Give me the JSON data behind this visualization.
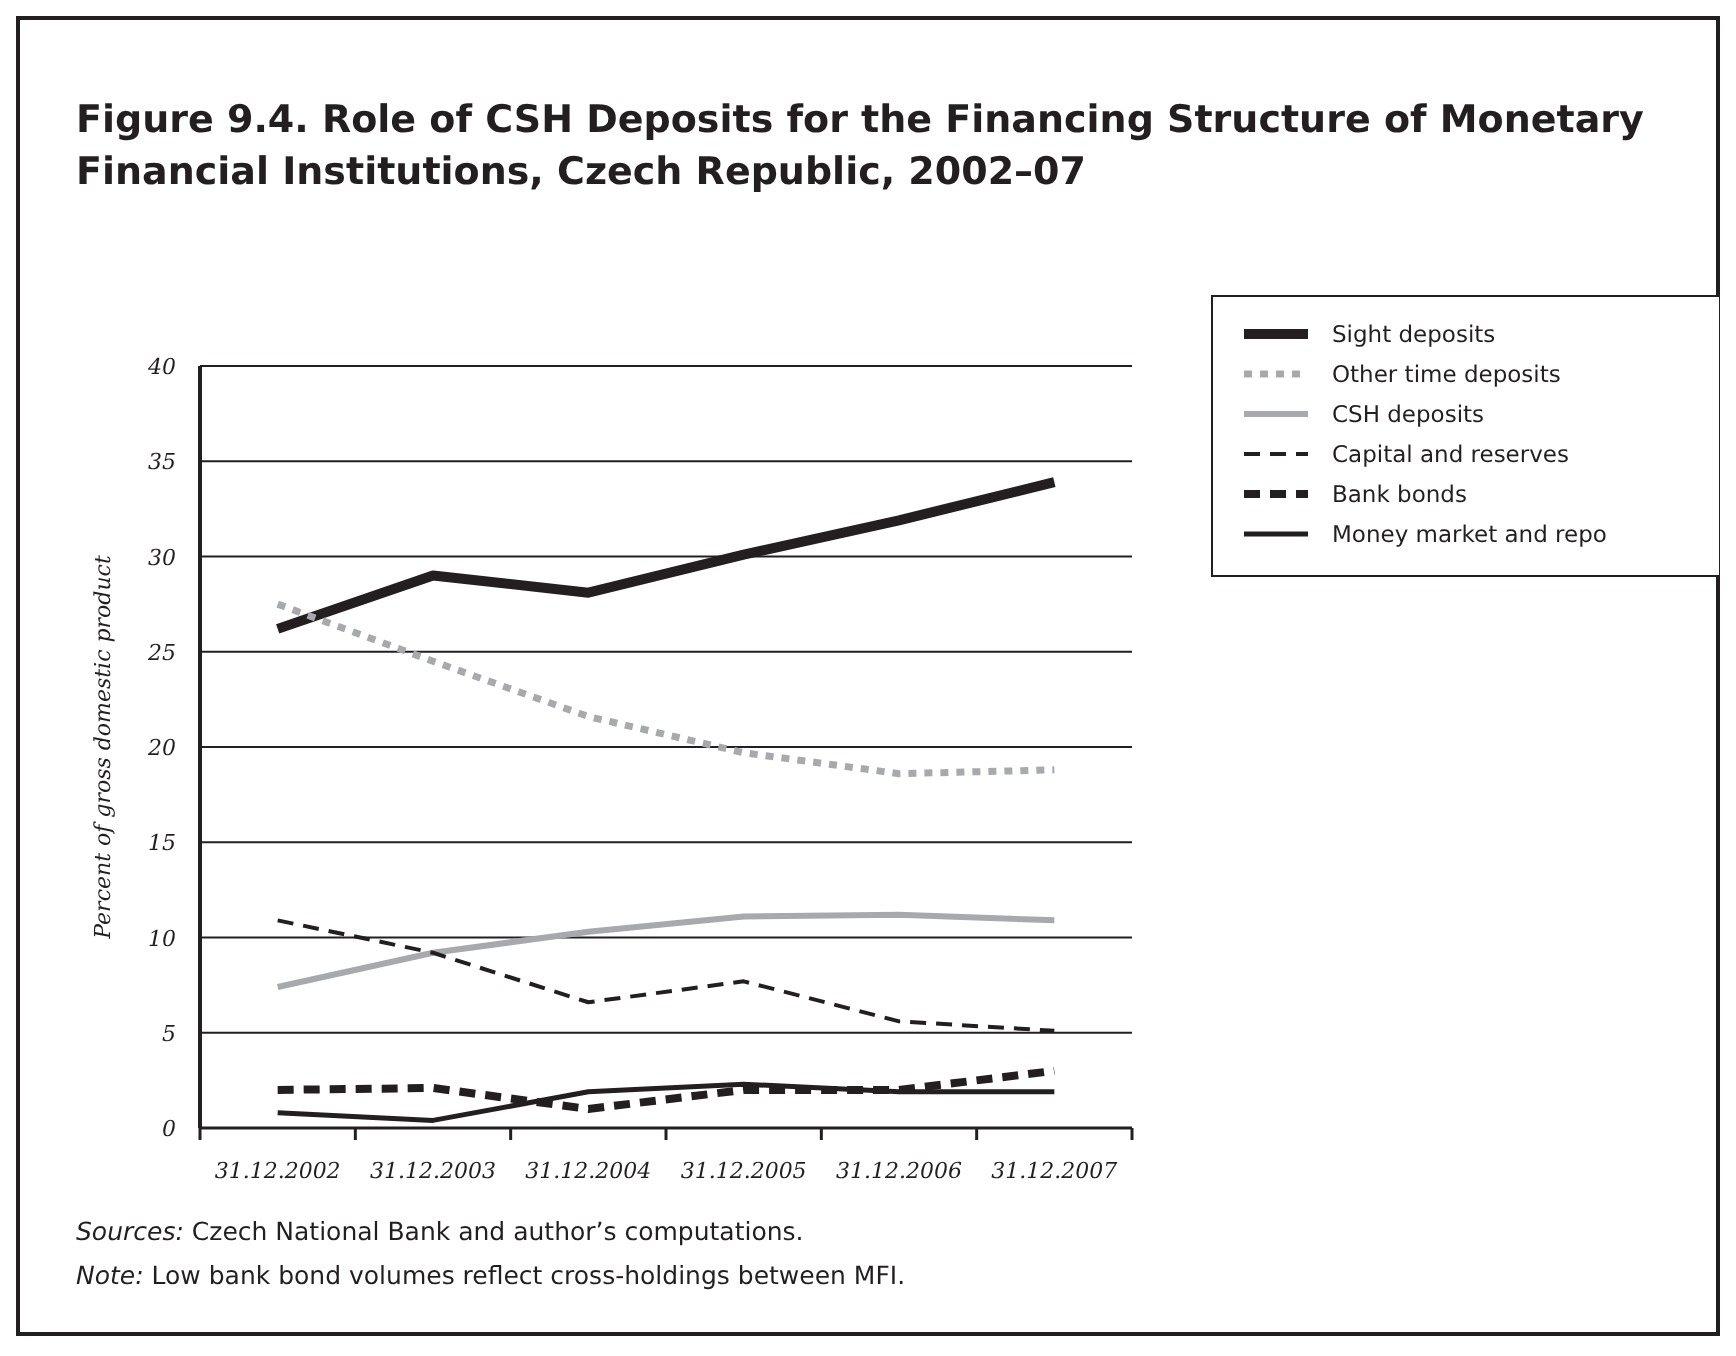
{
  "chart_data": {
    "type": "line",
    "title": "Figure 9.4. Role of CSH Deposits for the Financing Structure of Monetary Financial Institutions, Czech Republic, 2002–07",
    "ylabel": "Percent of gross domestic product",
    "categories": [
      "31.12.2002",
      "31.12.2003",
      "31.12.2004",
      "31.12.2005",
      "31.12.2006",
      "31.12.2007"
    ],
    "ylim": [
      0,
      40
    ],
    "yticks": [
      0,
      5,
      10,
      15,
      20,
      25,
      30,
      35,
      40
    ],
    "grid": "y",
    "legend": "top right",
    "marker": "none",
    "series": [
      {
        "name": "Sight deposits",
        "color": "#231f20",
        "line_style": "solid",
        "values": [
          26.2,
          29,
          28.1,
          30.1,
          31.9,
          33.9
        ]
      },
      {
        "name": "Other time deposits",
        "color": "#a7a9ac",
        "line_style": "dotted",
        "values": [
          27.5,
          24.5,
          21.6,
          19.7,
          18.6,
          18.8
        ]
      },
      {
        "name": "CSH deposits",
        "color": "#a7a9ac",
        "line_style": "solid",
        "values": [
          7.4,
          9.2,
          10.3,
          11.1,
          11.2,
          10.9
        ]
      },
      {
        "name": "Capital and reserves",
        "color": "#231f20",
        "line_style": "dashed",
        "values": [
          10.9,
          9.2,
          6.6,
          7.7,
          5.6,
          5.1
        ]
      },
      {
        "name": "Bank bonds",
        "color": "#231f20",
        "line_style": "dashed",
        "values": [
          2.0,
          2.1,
          1.0,
          2.0,
          2.0,
          3.0
        ]
      },
      {
        "name": "Money market and repo",
        "color": "#231f20",
        "line_style": "solid",
        "values": [
          0.8,
          0.4,
          1.9,
          2.3,
          1.9,
          1.9
        ]
      }
    ],
    "annotations": [
      "Sources: Czech National Bank and author’s computations.",
      "Note: Low bank bond volumes reflect cross-holdings between MFI."
    ]
  }
}
